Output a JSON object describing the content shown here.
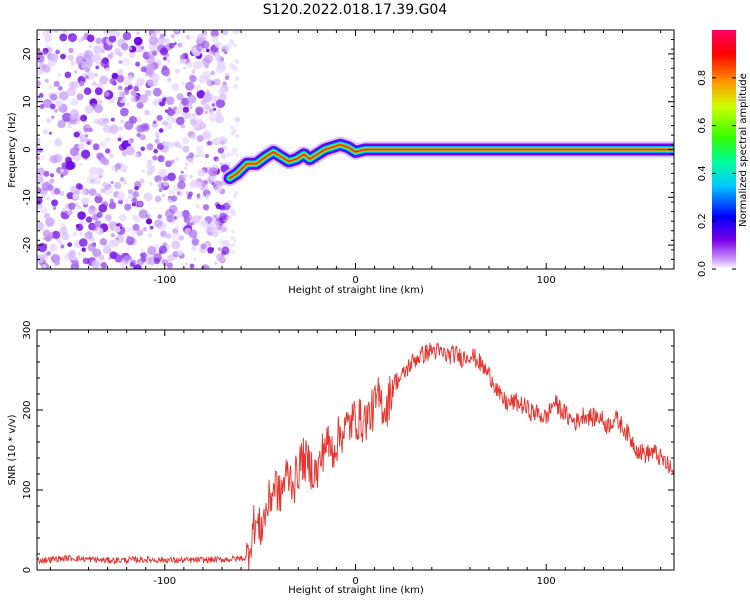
{
  "title": "S120.2022.018.17.39.G04",
  "chart_data": [
    {
      "type": "heatmap",
      "xlabel": "Height of straight line (km)",
      "ylabel": "Frequency (Hz)",
      "xlim": [
        -167,
        167
      ],
      "ylim": [
        -25,
        25
      ],
      "xticks": [
        -100,
        0,
        100
      ],
      "xtick_labels": [
        "-100",
        "0",
        "100"
      ],
      "yticks": [
        -20,
        -10,
        0,
        10,
        20
      ],
      "ytick_labels": [
        "-20",
        "-10",
        "0",
        "10",
        "20"
      ],
      "noise_region_x": [
        -167,
        -67
      ],
      "ridge": {
        "x": [
          -66,
          -62,
          -57,
          -52,
          -47,
          -43,
          -39,
          -35,
          -31,
          -27,
          -24,
          -20,
          -16,
          -12,
          -8,
          -4,
          0,
          5,
          10,
          167
        ],
        "y": [
          -6,
          -5,
          -3,
          -3,
          -1.5,
          -0.5,
          -1.5,
          -2.5,
          -2,
          -1,
          -2,
          -1,
          0,
          0.5,
          1,
          0.5,
          -0.5,
          0,
          0,
          0
        ]
      },
      "colorbar": {
        "label": "Normalized spectral amplitude",
        "range": [
          0,
          1
        ],
        "ticks": [
          0.0,
          0.2,
          0.4,
          0.6,
          0.8
        ],
        "tick_labels": [
          "0.0",
          "0.2",
          "0.4",
          "0.6",
          "0.8"
        ]
      }
    },
    {
      "type": "line",
      "xlabel": "Height of straight line (km)",
      "ylabel": "SNR (10 * v/v)",
      "xlim": [
        -167,
        167
      ],
      "ylim": [
        0,
        300
      ],
      "xticks": [
        -100,
        0,
        100
      ],
      "xtick_labels": [
        "-100",
        "0",
        "100"
      ],
      "yticks": [
        0,
        100,
        200,
        300
      ],
      "ytick_labels": [
        "0",
        "100",
        "200",
        "300"
      ],
      "series": [
        {
          "color": "#e8322d",
          "x": [
            -167,
            -150,
            -130,
            -110,
            -90,
            -70,
            -57,
            -53,
            -50,
            -46,
            -42,
            -40,
            -36,
            -32,
            -28,
            -24,
            -20,
            -16,
            -12,
            -8,
            -4,
            0,
            4,
            8,
            12,
            16,
            20,
            24,
            28,
            32,
            36,
            40,
            44,
            48,
            52,
            56,
            60,
            64,
            68,
            72,
            76,
            80,
            84,
            88,
            92,
            96,
            100,
            104,
            108,
            112,
            116,
            120,
            124,
            128,
            132,
            136,
            140,
            144,
            148,
            152,
            156,
            160,
            164,
            167
          ],
          "y": [
            12,
            15,
            12,
            13,
            12,
            13,
            15,
            60,
            50,
            80,
            110,
            90,
            120,
            110,
            140,
            130,
            120,
            160,
            150,
            170,
            180,
            190,
            185,
            195,
            215,
            200,
            235,
            240,
            255,
            265,
            270,
            275,
            272,
            268,
            270,
            265,
            270,
            262,
            250,
            238,
            215,
            208,
            210,
            205,
            198,
            195,
            190,
            210,
            200,
            190,
            185,
            195,
            190,
            192,
            180,
            190,
            180,
            165,
            150,
            145,
            148,
            140,
            130,
            120
          ]
        }
      ]
    }
  ]
}
